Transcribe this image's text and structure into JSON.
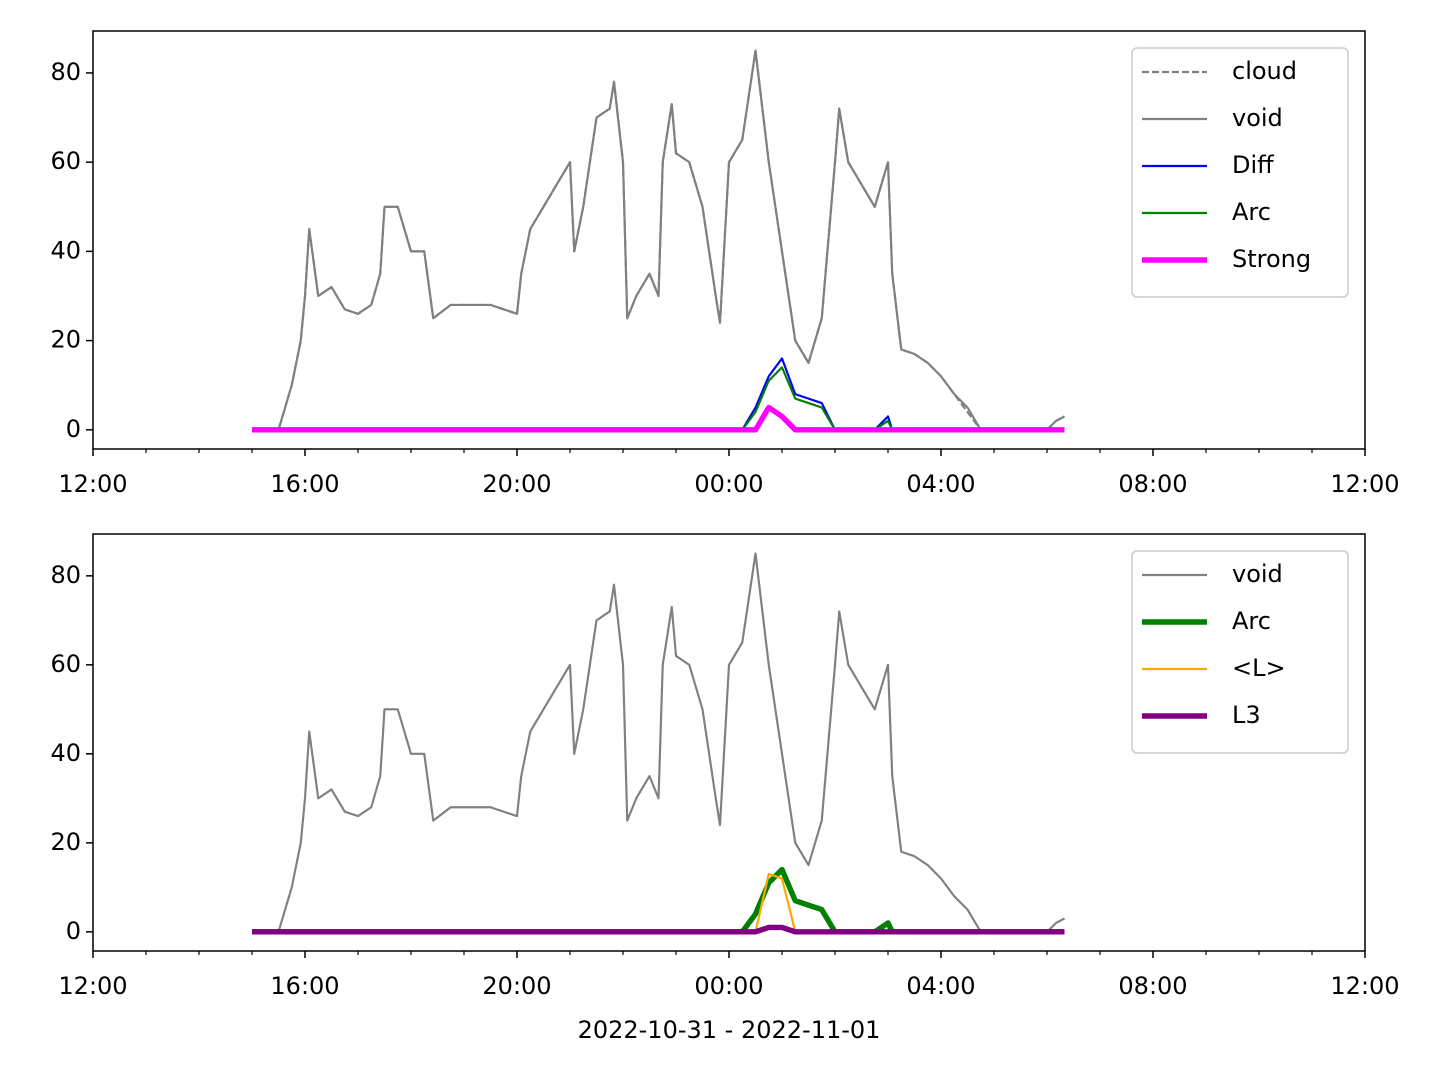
{
  "chart_data": [
    {
      "type": "line",
      "x": [
        15,
        15.5,
        15.75,
        15.92,
        16,
        16.08,
        16.25,
        16.5,
        16.75,
        17,
        17.25,
        17.42,
        17.5,
        17.75,
        18,
        18.25,
        18.42,
        18.75,
        19,
        19.5,
        20,
        20.08,
        20.25,
        20.5,
        20.75,
        21,
        21.08,
        21.25,
        21.5,
        21.75,
        21.83,
        22,
        22.08,
        22.25,
        22.5,
        22.67,
        22.75,
        22.92,
        23,
        23.25,
        23.5,
        23.75,
        23.83,
        24,
        24.25,
        24.5,
        24.75,
        25,
        25.25,
        25.5,
        25.75,
        26,
        26.08,
        26.25,
        26.5,
        26.75,
        27,
        27.08,
        27.25,
        27.5,
        27.75,
        28,
        28.25,
        28.5,
        28.75,
        29,
        29.5,
        30,
        30.17,
        30.33
      ],
      "series": [
        {
          "name": "cloud",
          "color": "#808080",
          "linestyle": "dashed",
          "linewidth": 1.2,
          "values": [
            0,
            0,
            10,
            20,
            30,
            45,
            30,
            32,
            27,
            26,
            28,
            35,
            50,
            50,
            40,
            40,
            25,
            28,
            28,
            28,
            26,
            35,
            45,
            50,
            55,
            60,
            40,
            50,
            70,
            72,
            78,
            60,
            25,
            30,
            35,
            30,
            60,
            73,
            62,
            60,
            50,
            30,
            24,
            60,
            65,
            85,
            60,
            40,
            20,
            15,
            25,
            60,
            72,
            60,
            55,
            50,
            60,
            35,
            18,
            17,
            15,
            12,
            8,
            4,
            0,
            0,
            0,
            0,
            2,
            3
          ]
        },
        {
          "name": "void",
          "color": "#808080",
          "linestyle": "solid",
          "linewidth": 1.2,
          "values": [
            0,
            0,
            10,
            20,
            30,
            45,
            30,
            32,
            27,
            26,
            28,
            35,
            50,
            50,
            40,
            40,
            25,
            28,
            28,
            28,
            26,
            35,
            45,
            50,
            55,
            60,
            40,
            50,
            70,
            72,
            78,
            60,
            25,
            30,
            35,
            30,
            60,
            73,
            62,
            60,
            50,
            30,
            24,
            60,
            65,
            85,
            60,
            40,
            20,
            15,
            25,
            60,
            72,
            60,
            55,
            50,
            60,
            35,
            18,
            17,
            15,
            12,
            8,
            5,
            0,
            0,
            0,
            0,
            2,
            3
          ]
        },
        {
          "name": "Diff",
          "color": "#0000ff",
          "linestyle": "solid",
          "linewidth": 1.2,
          "values": [
            0,
            0,
            0,
            0,
            0,
            0,
            0,
            0,
            0,
            0,
            0,
            0,
            0,
            0,
            0,
            0,
            0,
            0,
            0,
            0,
            0,
            0,
            0,
            0,
            0,
            0,
            0,
            0,
            0,
            0,
            0,
            0,
            0,
            0,
            0,
            0,
            0,
            0,
            0,
            0,
            0,
            0,
            0,
            0,
            0,
            5,
            12,
            16,
            8,
            7,
            6,
            0,
            0,
            0,
            0,
            0,
            3,
            0,
            0,
            0,
            0,
            0,
            0,
            0,
            0,
            0,
            0,
            0,
            0,
            0
          ]
        },
        {
          "name": "Arc",
          "color": "#008000",
          "linestyle": "solid",
          "linewidth": 1.2,
          "values": [
            0,
            0,
            0,
            0,
            0,
            0,
            0,
            0,
            0,
            0,
            0,
            0,
            0,
            0,
            0,
            0,
            0,
            0,
            0,
            0,
            0,
            0,
            0,
            0,
            0,
            0,
            0,
            0,
            0,
            0,
            0,
            0,
            0,
            0,
            0,
            0,
            0,
            0,
            0,
            0,
            0,
            0,
            0,
            0,
            0,
            4,
            11,
            14,
            7,
            6,
            5,
            0,
            0,
            0,
            0,
            0,
            2,
            0,
            0,
            0,
            0,
            0,
            0,
            0,
            0,
            0,
            0,
            0,
            0,
            0
          ]
        },
        {
          "name": "Strong",
          "color": "#ff00ff",
          "linestyle": "solid",
          "linewidth": 3,
          "values": [
            0,
            0,
            0,
            0,
            0,
            0,
            0,
            0,
            0,
            0,
            0,
            0,
            0,
            0,
            0,
            0,
            0,
            0,
            0,
            0,
            0,
            0,
            0,
            0,
            0,
            0,
            0,
            0,
            0,
            0,
            0,
            0,
            0,
            0,
            0,
            0,
            0,
            0,
            0,
            0,
            0,
            0,
            0,
            0,
            0,
            0,
            5,
            3,
            0,
            0,
            0,
            0,
            0,
            0,
            0,
            0,
            0,
            0,
            0,
            0,
            0,
            0,
            0,
            0,
            0,
            0,
            0,
            0,
            0,
            0
          ]
        }
      ],
      "xlim": [
        12,
        36
      ],
      "xticks": [
        {
          "value": 12,
          "label": "12:00"
        },
        {
          "value": 16,
          "label": "16:00"
        },
        {
          "value": 20,
          "label": "20:00"
        },
        {
          "value": 24,
          "label": "00:00"
        },
        {
          "value": 28,
          "label": "04:00"
        },
        {
          "value": 32,
          "label": "08:00"
        },
        {
          "value": 36,
          "label": "12:00"
        }
      ],
      "xminorticks": [
        13,
        14,
        15,
        17,
        18,
        19,
        21,
        22,
        23,
        25,
        26,
        27,
        29,
        30,
        31,
        33,
        34,
        35
      ],
      "ylim": [
        -4.3,
        89.4
      ],
      "yticks": [
        0,
        20,
        40,
        60,
        80
      ],
      "legend": "upper right"
    },
    {
      "type": "line",
      "x": [
        15,
        15.5,
        15.75,
        15.92,
        16,
        16.08,
        16.25,
        16.5,
        16.75,
        17,
        17.25,
        17.42,
        17.5,
        17.75,
        18,
        18.25,
        18.42,
        18.75,
        19,
        19.5,
        20,
        20.08,
        20.25,
        20.5,
        20.75,
        21,
        21.08,
        21.25,
        21.5,
        21.75,
        21.83,
        22,
        22.08,
        22.25,
        22.5,
        22.67,
        22.75,
        22.92,
        23,
        23.25,
        23.5,
        23.75,
        23.83,
        24,
        24.25,
        24.5,
        24.75,
        25,
        25.25,
        25.5,
        25.75,
        26,
        26.08,
        26.25,
        26.5,
        26.75,
        27,
        27.08,
        27.25,
        27.5,
        27.75,
        28,
        28.25,
        28.5,
        28.75,
        29,
        29.5,
        30,
        30.17,
        30.33
      ],
      "series": [
        {
          "name": "void",
          "color": "#808080",
          "linestyle": "solid",
          "linewidth": 1.2,
          "values": [
            0,
            0,
            10,
            20,
            30,
            45,
            30,
            32,
            27,
            26,
            28,
            35,
            50,
            50,
            40,
            40,
            25,
            28,
            28,
            28,
            26,
            35,
            45,
            50,
            55,
            60,
            40,
            50,
            70,
            72,
            78,
            60,
            25,
            30,
            35,
            30,
            60,
            73,
            62,
            60,
            50,
            30,
            24,
            60,
            65,
            85,
            60,
            40,
            20,
            15,
            25,
            60,
            72,
            60,
            55,
            50,
            60,
            35,
            18,
            17,
            15,
            12,
            8,
            5,
            0,
            0,
            0,
            0,
            2,
            3
          ]
        },
        {
          "name": "Arc",
          "color": "#008000",
          "linestyle": "solid",
          "linewidth": 3,
          "values": [
            0,
            0,
            0,
            0,
            0,
            0,
            0,
            0,
            0,
            0,
            0,
            0,
            0,
            0,
            0,
            0,
            0,
            0,
            0,
            0,
            0,
            0,
            0,
            0,
            0,
            0,
            0,
            0,
            0,
            0,
            0,
            0,
            0,
            0,
            0,
            0,
            0,
            0,
            0,
            0,
            0,
            0,
            0,
            0,
            0,
            4,
            11,
            14,
            7,
            6,
            5,
            0,
            0,
            0,
            0,
            0,
            2,
            0,
            0,
            0,
            0,
            0,
            0,
            0,
            0,
            0,
            0,
            0,
            0,
            0
          ]
        },
        {
          "name": "<L>",
          "color": "#ffa500",
          "linestyle": "solid",
          "linewidth": 1.2,
          "values": [
            0,
            0,
            0,
            0,
            0,
            0,
            0,
            0,
            0,
            0,
            0,
            0,
            0,
            0,
            0,
            0,
            0,
            0,
            0,
            0,
            0,
            0,
            0,
            0,
            0,
            0,
            0,
            0,
            0,
            0,
            0,
            0,
            0,
            0,
            0,
            0,
            0,
            0,
            0,
            0,
            0,
            0,
            0,
            0,
            0,
            0,
            13,
            12,
            0,
            0,
            0,
            0,
            0,
            0,
            0,
            0,
            0,
            0,
            0,
            0,
            0,
            0,
            0,
            0,
            0,
            0,
            0,
            0,
            0,
            0
          ]
        },
        {
          "name": "L3",
          "color": "#800080",
          "linestyle": "solid",
          "linewidth": 3,
          "values": [
            0,
            0,
            0,
            0,
            0,
            0,
            0,
            0,
            0,
            0,
            0,
            0,
            0,
            0,
            0,
            0,
            0,
            0,
            0,
            0,
            0,
            0,
            0,
            0,
            0,
            0,
            0,
            0,
            0,
            0,
            0,
            0,
            0,
            0,
            0,
            0,
            0,
            0,
            0,
            0,
            0,
            0,
            0,
            0,
            0,
            0,
            1,
            1,
            0,
            0,
            0,
            0,
            0,
            0,
            0,
            0,
            0,
            0,
            0,
            0,
            0,
            0,
            0,
            0,
            0,
            0,
            0,
            0,
            0,
            0
          ]
        }
      ],
      "xlim": [
        12,
        36
      ],
      "xticks": [
        {
          "value": 12,
          "label": "12:00"
        },
        {
          "value": 16,
          "label": "16:00"
        },
        {
          "value": 20,
          "label": "20:00"
        },
        {
          "value": 24,
          "label": "00:00"
        },
        {
          "value": 28,
          "label": "04:00"
        },
        {
          "value": 32,
          "label": "08:00"
        },
        {
          "value": 36,
          "label": "12:00"
        }
      ],
      "xminorticks": [
        13,
        14,
        15,
        17,
        18,
        19,
        21,
        22,
        23,
        25,
        26,
        27,
        29,
        30,
        31,
        33,
        34,
        35
      ],
      "ylim": [
        -4.3,
        89.4
      ],
      "yticks": [
        0,
        20,
        40,
        60,
        80
      ],
      "legend": "upper right",
      "xlabel": "2022-10-31 - 2022-11-01"
    }
  ]
}
